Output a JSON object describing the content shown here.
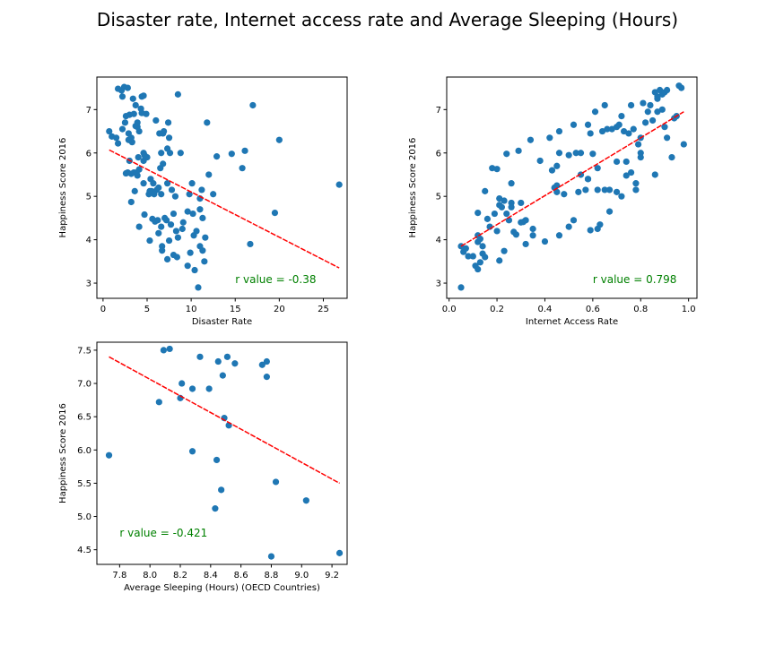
{
  "figure_title": "Disaster rate, Internet access rate and Average Sleeping (Hours)",
  "colors": {
    "points": "#1f77b4",
    "fit_line": "#ff0000",
    "r_label": "#008000"
  },
  "chart_data": [
    {
      "type": "scatter",
      "xlabel": "Disaster Rate",
      "ylabel": "Happiness Score 2016",
      "xlim": [
        -0.7,
        27.7
      ],
      "ylim": [
        2.65,
        7.75
      ],
      "xticks": [
        0,
        5,
        10,
        15,
        20,
        25
      ],
      "yticks": [
        3,
        4,
        5,
        6,
        7
      ],
      "annotation": "r value = -0.38",
      "annotation_pos": [
        15,
        3.0
      ],
      "fit_line": {
        "x": [
          0.7,
          26.8
        ],
        "y": [
          6.07,
          3.35
        ]
      },
      "points": [
        [
          0.7,
          6.5
        ],
        [
          1.0,
          6.38
        ],
        [
          1.5,
          6.35
        ],
        [
          1.7,
          6.22
        ],
        [
          1.7,
          7.48
        ],
        [
          2.1,
          7.44
        ],
        [
          2.2,
          7.3
        ],
        [
          2.2,
          6.55
        ],
        [
          2.4,
          7.52
        ],
        [
          2.5,
          6.7
        ],
        [
          2.6,
          6.85
        ],
        [
          2.6,
          5.53
        ],
        [
          2.8,
          7.5
        ],
        [
          2.8,
          5.55
        ],
        [
          2.9,
          6.45
        ],
        [
          3.0,
          6.88
        ],
        [
          3.0,
          5.82
        ],
        [
          3.2,
          6.35
        ],
        [
          3.2,
          5.52
        ],
        [
          3.2,
          4.87
        ],
        [
          3.3,
          6.25
        ],
        [
          3.4,
          7.25
        ],
        [
          3.5,
          6.9
        ],
        [
          3.5,
          5.55
        ],
        [
          3.6,
          5.12
        ],
        [
          3.7,
          7.1
        ],
        [
          3.7,
          6.62
        ],
        [
          3.9,
          6.6
        ],
        [
          3.9,
          5.48
        ],
        [
          4.0,
          5.9
        ],
        [
          4.1,
          6.5
        ],
        [
          4.1,
          5.62
        ],
        [
          4.1,
          4.3
        ],
        [
          4.3,
          7.02
        ],
        [
          4.4,
          7.3
        ],
        [
          4.4,
          6.92
        ],
        [
          4.6,
          7.32
        ],
        [
          4.6,
          6.0
        ],
        [
          4.6,
          5.82
        ],
        [
          4.6,
          5.3
        ],
        [
          4.7,
          4.58
        ],
        [
          4.9,
          6.9
        ],
        [
          5.0,
          5.9
        ],
        [
          5.2,
          5.05
        ],
        [
          5.3,
          5.12
        ],
        [
          5.4,
          5.4
        ],
        [
          5.5,
          5.12
        ],
        [
          5.6,
          4.48
        ],
        [
          5.7,
          5.3
        ],
        [
          5.9,
          4.42
        ],
        [
          6.0,
          6.75
        ],
        [
          6.1,
          5.15
        ],
        [
          6.2,
          4.45
        ],
        [
          6.3,
          5.2
        ],
        [
          6.3,
          4.15
        ],
        [
          6.4,
          6.45
        ],
        [
          6.5,
          5.65
        ],
        [
          6.6,
          6.0
        ],
        [
          6.6,
          5.05
        ],
        [
          6.7,
          3.85
        ],
        [
          6.8,
          6.45
        ],
        [
          6.8,
          5.75
        ],
        [
          7.0,
          4.5
        ],
        [
          7.2,
          4.45
        ],
        [
          7.3,
          5.3
        ],
        [
          7.4,
          6.7
        ],
        [
          7.5,
          6.35
        ],
        [
          7.5,
          3.98
        ],
        [
          7.6,
          6.0
        ],
        [
          7.7,
          4.35
        ],
        [
          7.8,
          5.15
        ],
        [
          8.0,
          3.65
        ],
        [
          8.2,
          5.0
        ],
        [
          8.3,
          4.2
        ],
        [
          8.4,
          3.6
        ],
        [
          8.5,
          7.35
        ],
        [
          8.5,
          4.05
        ],
        [
          8.8,
          6.0
        ],
        [
          9.1,
          4.4
        ],
        [
          9.6,
          3.4
        ],
        [
          9.6,
          4.65
        ],
        [
          9.8,
          5.05
        ],
        [
          10.1,
          5.3
        ],
        [
          10.2,
          4.6
        ],
        [
          10.3,
          4.1
        ],
        [
          10.4,
          3.3
        ],
        [
          10.6,
          4.2
        ],
        [
          10.8,
          2.9
        ],
        [
          11.0,
          4.95
        ],
        [
          11.0,
          4.7
        ],
        [
          11.2,
          5.15
        ],
        [
          11.3,
          4.5
        ],
        [
          11.3,
          3.75
        ],
        [
          11.5,
          3.5
        ],
        [
          11.6,
          4.05
        ],
        [
          11.8,
          6.7
        ],
        [
          12.0,
          5.5
        ],
        [
          12.5,
          5.05
        ],
        [
          12.9,
          5.92
        ],
        [
          14.6,
          5.98
        ],
        [
          15.8,
          5.65
        ],
        [
          16.1,
          6.05
        ],
        [
          16.7,
          3.9
        ],
        [
          17.0,
          7.1
        ],
        [
          19.5,
          4.62
        ],
        [
          20.0,
          6.3
        ],
        [
          26.8,
          5.27
        ],
        [
          6.7,
          3.75
        ],
        [
          7.3,
          3.55
        ],
        [
          9.9,
          3.7
        ],
        [
          6.6,
          4.3
        ],
        [
          3.8,
          5.55
        ],
        [
          5.8,
          5.05
        ],
        [
          8.0,
          4.6
        ],
        [
          5.3,
          3.98
        ],
        [
          7.3,
          6.1
        ],
        [
          9.0,
          4.25
        ],
        [
          4.7,
          5.95
        ],
        [
          3.9,
          6.7
        ],
        [
          6.9,
          6.5
        ],
        [
          2.9,
          6.3
        ],
        [
          11.0,
          3.85
        ]
      ]
    },
    {
      "type": "scatter",
      "xlabel": "Internet Access Rate",
      "ylabel": "Happiness Score 2016",
      "xlim": [
        -0.01,
        1.035
      ],
      "ylim": [
        2.65,
        7.75
      ],
      "xticks": [
        0.0,
        0.2,
        0.4,
        0.6,
        0.8,
        1.0
      ],
      "yticks": [
        3,
        4,
        5,
        6,
        7
      ],
      "annotation": "r value = 0.798",
      "annotation_pos": [
        0.6,
        3.0
      ],
      "fit_line": {
        "x": [
          0.05,
          0.98
        ],
        "y": [
          3.85,
          6.95
        ]
      },
      "points": [
        [
          0.05,
          2.9
        ],
        [
          0.05,
          3.85
        ],
        [
          0.06,
          3.72
        ],
        [
          0.07,
          3.8
        ],
        [
          0.08,
          3.62
        ],
        [
          0.1,
          3.62
        ],
        [
          0.11,
          3.4
        ],
        [
          0.12,
          3.32
        ],
        [
          0.12,
          4.62
        ],
        [
          0.12,
          4.1
        ],
        [
          0.12,
          3.95
        ],
        [
          0.13,
          4.02
        ],
        [
          0.13,
          3.48
        ],
        [
          0.14,
          3.85
        ],
        [
          0.14,
          3.68
        ],
        [
          0.15,
          3.6
        ],
        [
          0.15,
          5.12
        ],
        [
          0.16,
          4.48
        ],
        [
          0.17,
          4.3
        ],
        [
          0.18,
          5.65
        ],
        [
          0.19,
          4.6
        ],
        [
          0.2,
          5.63
        ],
        [
          0.2,
          4.2
        ],
        [
          0.21,
          3.52
        ],
        [
          0.21,
          4.95
        ],
        [
          0.21,
          4.8
        ],
        [
          0.22,
          4.75
        ],
        [
          0.23,
          4.9
        ],
        [
          0.23,
          3.74
        ],
        [
          0.24,
          4.6
        ],
        [
          0.24,
          5.98
        ],
        [
          0.25,
          4.45
        ],
        [
          0.26,
          5.3
        ],
        [
          0.26,
          4.85
        ],
        [
          0.26,
          4.75
        ],
        [
          0.27,
          4.18
        ],
        [
          0.28,
          4.12
        ],
        [
          0.29,
          6.05
        ],
        [
          0.3,
          4.85
        ],
        [
          0.3,
          4.4
        ],
        [
          0.31,
          4.41
        ],
        [
          0.32,
          4.45
        ],
        [
          0.32,
          3.9
        ],
        [
          0.34,
          6.3
        ],
        [
          0.35,
          4.25
        ],
        [
          0.38,
          5.82
        ],
        [
          0.4,
          3.96
        ],
        [
          0.42,
          6.35
        ],
        [
          0.43,
          5.6
        ],
        [
          0.44,
          5.2
        ],
        [
          0.45,
          5.7
        ],
        [
          0.45,
          5.25
        ],
        [
          0.45,
          5.1
        ],
        [
          0.46,
          6.0
        ],
        [
          0.46,
          6.5
        ],
        [
          0.46,
          4.1
        ],
        [
          0.48,
          5.05
        ],
        [
          0.5,
          4.3
        ],
        [
          0.5,
          5.95
        ],
        [
          0.52,
          6.65
        ],
        [
          0.52,
          4.45
        ],
        [
          0.53,
          6.0
        ],
        [
          0.54,
          5.1
        ],
        [
          0.55,
          6.0
        ],
        [
          0.55,
          5.5
        ],
        [
          0.57,
          5.15
        ],
        [
          0.58,
          5.4
        ],
        [
          0.58,
          5.4
        ],
        [
          0.59,
          6.45
        ],
        [
          0.59,
          4.22
        ],
        [
          0.6,
          5.98
        ],
        [
          0.61,
          6.95
        ],
        [
          0.62,
          5.65
        ],
        [
          0.62,
          4.25
        ],
        [
          0.62,
          5.15
        ],
        [
          0.63,
          4.35
        ],
        [
          0.64,
          6.5
        ],
        [
          0.65,
          7.1
        ],
        [
          0.65,
          5.15
        ],
        [
          0.67,
          4.65
        ],
        [
          0.67,
          5.15
        ],
        [
          0.68,
          6.55
        ],
        [
          0.7,
          5.8
        ],
        [
          0.7,
          5.1
        ],
        [
          0.71,
          6.65
        ],
        [
          0.72,
          5.0
        ],
        [
          0.72,
          6.85
        ],
        [
          0.73,
          6.5
        ],
        [
          0.74,
          5.48
        ],
        [
          0.74,
          5.8
        ],
        [
          0.75,
          6.45
        ],
        [
          0.76,
          7.1
        ],
        [
          0.76,
          5.55
        ],
        [
          0.77,
          6.55
        ],
        [
          0.78,
          5.3
        ],
        [
          0.78,
          5.15
        ],
        [
          0.79,
          6.2
        ],
        [
          0.8,
          5.9
        ],
        [
          0.8,
          6.0
        ],
        [
          0.8,
          6.35
        ],
        [
          0.81,
          7.15
        ],
        [
          0.82,
          6.7
        ],
        [
          0.83,
          6.95
        ],
        [
          0.84,
          7.1
        ],
        [
          0.85,
          6.75
        ],
        [
          0.86,
          7.4
        ],
        [
          0.86,
          5.5
        ],
        [
          0.87,
          6.95
        ],
        [
          0.87,
          7.3
        ],
        [
          0.88,
          7.45
        ],
        [
          0.89,
          7.35
        ],
        [
          0.89,
          7.0
        ],
        [
          0.9,
          6.6
        ],
        [
          0.9,
          7.4
        ],
        [
          0.91,
          6.35
        ],
        [
          0.91,
          7.45
        ],
        [
          0.93,
          5.9
        ],
        [
          0.94,
          6.8
        ],
        [
          0.95,
          6.85
        ],
        [
          0.96,
          7.55
        ],
        [
          0.97,
          7.5
        ],
        [
          0.98,
          6.2
        ],
        [
          0.87,
          7.25
        ],
        [
          0.7,
          6.6
        ],
        [
          0.66,
          6.55
        ],
        [
          0.58,
          6.65
        ],
        [
          0.35,
          4.1
        ]
      ]
    },
    {
      "type": "scatter",
      "xlabel": "Average Sleeping (Hours) (OECD Countries)",
      "ylabel": "Happiness Score 2016",
      "xlim": [
        7.65,
        9.3
      ],
      "ylim": [
        4.28,
        7.62
      ],
      "xticks": [
        7.8,
        8.0,
        8.2,
        8.4,
        8.6,
        8.8,
        9.0,
        9.2
      ],
      "yticks": [
        4.5,
        5.0,
        5.5,
        6.0,
        6.5,
        7.0,
        7.5
      ],
      "annotation": "r value = -0.421",
      "annotation_pos": [
        7.8,
        4.7
      ],
      "fit_line": {
        "x": [
          7.73,
          9.25
        ],
        "y": [
          7.4,
          5.5
        ]
      },
      "points": [
        [
          7.73,
          5.92
        ],
        [
          8.06,
          6.72
        ],
        [
          8.09,
          7.5
        ],
        [
          8.13,
          7.52
        ],
        [
          8.2,
          6.78
        ],
        [
          8.21,
          7.0
        ],
        [
          8.28,
          6.92
        ],
        [
          8.28,
          5.98
        ],
        [
          8.33,
          7.4
        ],
        [
          8.39,
          6.92
        ],
        [
          8.43,
          5.12
        ],
        [
          8.44,
          5.85
        ],
        [
          8.45,
          7.33
        ],
        [
          8.47,
          5.4
        ],
        [
          8.48,
          7.12
        ],
        [
          8.49,
          6.48
        ],
        [
          8.51,
          7.4
        ],
        [
          8.52,
          6.37
        ],
        [
          8.56,
          7.3
        ],
        [
          8.74,
          7.28
        ],
        [
          8.77,
          7.33
        ],
        [
          8.77,
          7.1
        ],
        [
          8.8,
          4.4
        ],
        [
          8.83,
          5.52
        ],
        [
          9.03,
          5.24
        ],
        [
          9.25,
          4.45
        ]
      ]
    }
  ]
}
